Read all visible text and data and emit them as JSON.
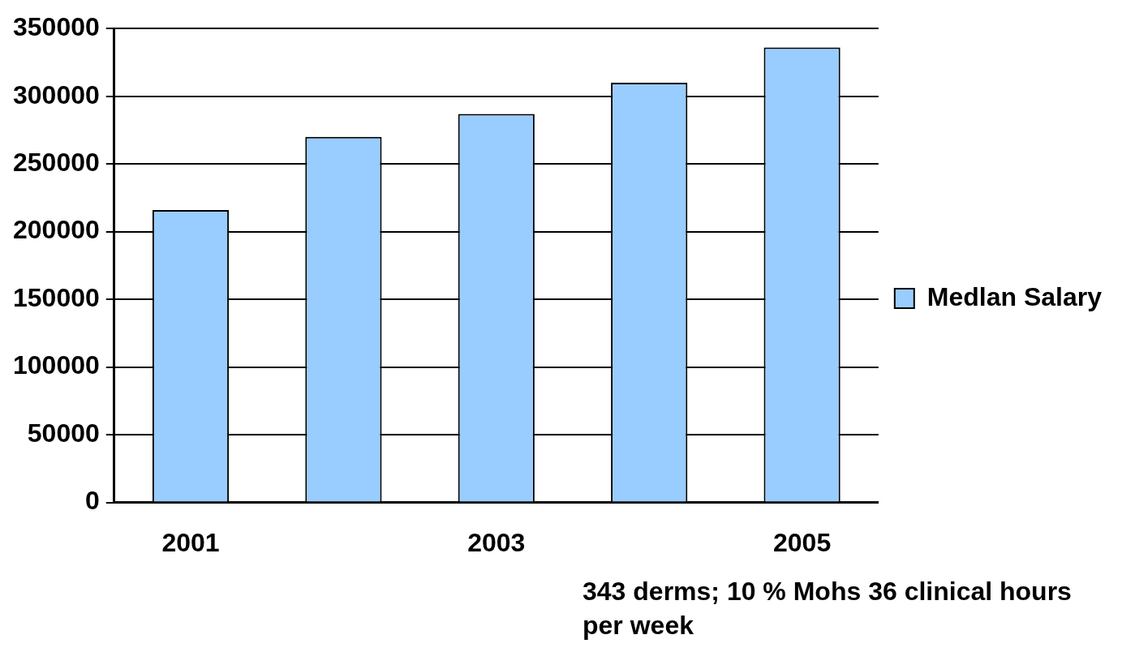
{
  "chart_data": {
    "type": "bar",
    "categories": [
      "2001",
      null,
      "2003",
      null,
      "2005"
    ],
    "series": [
      {
        "name": "Medlan Salary",
        "color": "#99ccff",
        "values": [
          216000,
          270000,
          287000,
          310000,
          336000
        ]
      }
    ],
    "ylim": [
      0,
      350000
    ],
    "yticks": [
      0,
      50000,
      100000,
      150000,
      200000,
      250000,
      300000,
      350000
    ],
    "grid": "y",
    "legend": "right",
    "annotations": [
      "343 derms; 10 % Mohs 36 clinical hours per week"
    ]
  }
}
